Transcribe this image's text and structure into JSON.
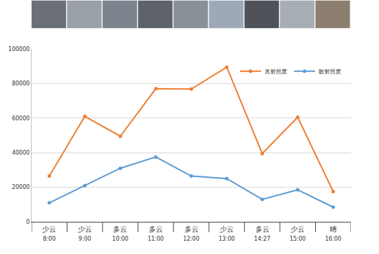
{
  "chart_data": {
    "type": "line",
    "categories": [
      "8:00",
      "9:00",
      "10:00",
      "11:00",
      "12:00",
      "13:00",
      "14:27",
      "15:00",
      "16:00"
    ],
    "series": [
      {
        "name": "直射照度",
        "color": "#ed7d31",
        "marker": "circle",
        "values": [
          26500,
          61000,
          49500,
          77000,
          76800,
          89500,
          39500,
          60500,
          17500
        ]
      },
      {
        "name": "散射照度",
        "color": "#5b9bd5",
        "marker": "circle",
        "values": [
          11000,
          21000,
          31000,
          37500,
          26500,
          25000,
          13000,
          18500,
          8500
        ]
      }
    ],
    "annotations": [
      {
        "x": "8:00",
        "text": "少云"
      },
      {
        "x": "9:00",
        "text": "少云"
      },
      {
        "x": "10:00",
        "text": "多云"
      },
      {
        "x": "11:00",
        "text": "多云"
      },
      {
        "x": "12:00",
        "text": "多云"
      },
      {
        "x": "13:00",
        "text": "少云"
      },
      {
        "x": "14:27",
        "text": "多云"
      },
      {
        "x": "15:00",
        "text": "少云"
      },
      {
        "x": "16:00",
        "text": "晴"
      }
    ],
    "ylim": [
      0,
      100000
    ],
    "yticks": [
      0,
      20000,
      40000,
      60000,
      80000,
      100000
    ],
    "grid": true,
    "legend": "upper right"
  }
}
